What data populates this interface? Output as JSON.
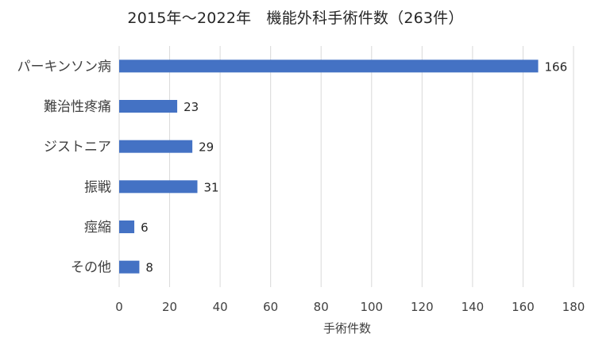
{
  "chart_data": {
    "type": "bar",
    "orientation": "horizontal",
    "title": "2015年～2022年　機能外科手術件数（263件）",
    "categories": [
      "パーキンソン病",
      "難治性疼痛",
      "ジストニア",
      "振戦",
      "痙縮",
      "その他"
    ],
    "values": [
      166,
      23,
      29,
      31,
      6,
      8
    ],
    "xlabel": "手術件数",
    "ylabel": "",
    "xlim": [
      0,
      180
    ],
    "xticks": [
      0,
      20,
      40,
      60,
      80,
      100,
      120,
      140,
      160,
      180
    ],
    "grid": "vertical",
    "legend": "none",
    "data_labels": true,
    "bar_color": "#4472C4",
    "grid_color": "#D9D9D9"
  }
}
